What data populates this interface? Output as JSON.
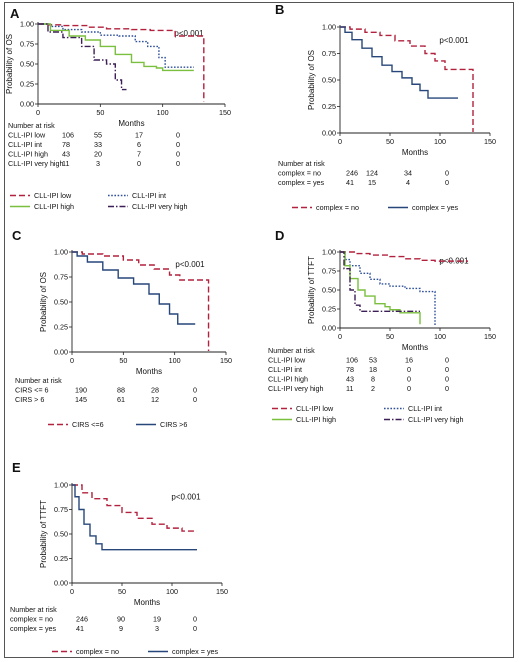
{
  "colors": {
    "red": "#b2213d",
    "blue": "#27477a",
    "green": "#7bbf3f",
    "purple": "#3d1f57",
    "navyDot": "#2e4f9a",
    "axis": "#222222"
  },
  "chart_data": [
    {
      "panel": "A",
      "type": "line",
      "step": true,
      "ylabel": "Probability of OS",
      "xlabel": "Months",
      "pvalue": "p<0.001",
      "xlim": [
        0,
        150
      ],
      "ylim": [
        0,
        1
      ],
      "xticks": [
        0,
        50,
        100,
        150
      ],
      "yticks": [
        0.0,
        0.25,
        0.5,
        0.75,
        1.0
      ],
      "series": [
        {
          "name": "CLL-IPI low",
          "color": "#b2213d",
          "dash": "long",
          "points": [
            [
              0,
              1
            ],
            [
              8,
              0.99
            ],
            [
              20,
              0.98
            ],
            [
              40,
              0.96
            ],
            [
              55,
              0.94
            ],
            [
              75,
              0.93
            ],
            [
              90,
              0.92
            ],
            [
              100,
              0.92
            ],
            [
              110,
              0.85
            ],
            [
              133,
              0.85
            ],
            [
              133,
              0.03
            ]
          ]
        },
        {
          "name": "CLL-IPI int",
          "color": "#2e4f9a",
          "dash": "dot",
          "points": [
            [
              0,
              1
            ],
            [
              10,
              0.97
            ],
            [
              20,
              0.93
            ],
            [
              35,
              0.9
            ],
            [
              50,
              0.86
            ],
            [
              65,
              0.85
            ],
            [
              78,
              0.78
            ],
            [
              88,
              0.72
            ],
            [
              97,
              0.58
            ],
            [
              102,
              0.46
            ],
            [
              125,
              0.46
            ]
          ]
        },
        {
          "name": "CLL-IPI high",
          "color": "#7bbf3f",
          "dash": "solid",
          "points": [
            [
              0,
              1
            ],
            [
              10,
              0.92
            ],
            [
              25,
              0.85
            ],
            [
              38,
              0.8
            ],
            [
              50,
              0.72
            ],
            [
              62,
              0.62
            ],
            [
              75,
              0.52
            ],
            [
              85,
              0.47
            ],
            [
              95,
              0.45
            ],
            [
              100,
              0.42
            ],
            [
              125,
              0.42
            ]
          ]
        },
        {
          "name": "CLL-IPI very high",
          "color": "#3d1f57",
          "dash": "dashdot",
          "points": [
            [
              0,
              1
            ],
            [
              8,
              0.9
            ],
            [
              20,
              0.83
            ],
            [
              35,
              0.72
            ],
            [
              45,
              0.55
            ],
            [
              55,
              0.5
            ],
            [
              62,
              0.3
            ],
            [
              67,
              0.18
            ],
            [
              71,
              0.18
            ]
          ]
        }
      ],
      "risk": {
        "title": "Number at risk",
        "rows": [
          {
            "label": "CLL-IPI  low",
            "values": [
              "106",
              "55",
              "17",
              "0"
            ]
          },
          {
            "label": "CLL-IPI  int",
            "values": [
              "78",
              "33",
              "6",
              "0"
            ]
          },
          {
            "label": "CLL-IPI  high",
            "values": [
              "43",
              "20",
              "7",
              "0"
            ]
          },
          {
            "label": "CLL-IPI very high",
            "values": [
              "11",
              "3",
              "0",
              "0"
            ]
          }
        ]
      },
      "legend_placement": "bottom"
    },
    {
      "panel": "B",
      "type": "line",
      "step": true,
      "ylabel": "Probability of OS",
      "xlabel": "Months",
      "pvalue": "p<0.001",
      "xlim": [
        0,
        150
      ],
      "ylim": [
        0,
        1
      ],
      "xticks": [
        0,
        50,
        100,
        150
      ],
      "yticks": [
        0.0,
        0.25,
        0.5,
        0.75,
        1.0
      ],
      "series": [
        {
          "name": "complex = no",
          "color": "#b2213d",
          "dash": "long",
          "points": [
            [
              0,
              1
            ],
            [
              10,
              0.98
            ],
            [
              25,
              0.95
            ],
            [
              40,
              0.92
            ],
            [
              55,
              0.87
            ],
            [
              70,
              0.82
            ],
            [
              85,
              0.75
            ],
            [
              95,
              0.68
            ],
            [
              105,
              0.6
            ],
            [
              133,
              0.6
            ],
            [
              133,
              0.01
            ]
          ]
        },
        {
          "name": "complex = yes",
          "color": "#27477a",
          "dash": "solid",
          "points": [
            [
              0,
              1
            ],
            [
              5,
              0.95
            ],
            [
              12,
              0.88
            ],
            [
              22,
              0.8
            ],
            [
              32,
              0.72
            ],
            [
              42,
              0.64
            ],
            [
              52,
              0.58
            ],
            [
              62,
              0.52
            ],
            [
              72,
              0.46
            ],
            [
              80,
              0.4
            ],
            [
              88,
              0.33
            ],
            [
              118,
              0.33
            ]
          ]
        }
      ],
      "risk": {
        "title": "Number at risk",
        "rows": [
          {
            "label": "complex = no",
            "values": [
              "246",
              "124",
              "34",
              "0"
            ]
          },
          {
            "label": "complex = yes",
            "values": [
              "41",
              "15",
              "4",
              "0"
            ]
          }
        ]
      },
      "legend_placement": "bottom"
    },
    {
      "panel": "C",
      "type": "line",
      "step": true,
      "ylabel": "Probability of OS",
      "xlabel": "Months",
      "pvalue": "p<0.001",
      "xlim": [
        0,
        150
      ],
      "ylim": [
        0,
        1
      ],
      "xticks": [
        0,
        50,
        100,
        150
      ],
      "yticks": [
        0.0,
        0.25,
        0.5,
        0.75,
        1.0
      ],
      "series": [
        {
          "name": "CIRS <=6",
          "color": "#b2213d",
          "dash": "long",
          "points": [
            [
              0,
              1
            ],
            [
              10,
              0.98
            ],
            [
              30,
              0.96
            ],
            [
              50,
              0.92
            ],
            [
              65,
              0.87
            ],
            [
              80,
              0.83
            ],
            [
              95,
              0.77
            ],
            [
              105,
              0.72
            ],
            [
              133,
              0.72
            ],
            [
              133,
              0.01
            ]
          ]
        },
        {
          "name": "CIRS >6",
          "color": "#27477a",
          "dash": "solid",
          "points": [
            [
              0,
              1
            ],
            [
              5,
              0.96
            ],
            [
              15,
              0.9
            ],
            [
              30,
              0.82
            ],
            [
              45,
              0.74
            ],
            [
              60,
              0.68
            ],
            [
              75,
              0.58
            ],
            [
              85,
              0.48
            ],
            [
              95,
              0.38
            ],
            [
              103,
              0.28
            ],
            [
              120,
              0.28
            ]
          ]
        }
      ],
      "risk": {
        "title": "Number at risk",
        "rows": [
          {
            "label": "CIRS  <=  6",
            "values": [
              "190",
              "88",
              "28",
              "0"
            ]
          },
          {
            "label": "CIRS   >  6",
            "values": [
              "145",
              "61",
              "12",
              "0"
            ]
          }
        ]
      },
      "legend_placement": "bottom"
    },
    {
      "panel": "D",
      "type": "line",
      "step": true,
      "ylabel": "Probability of TTFT",
      "xlabel": "Months",
      "pvalue": "p<0.001",
      "xlim": [
        0,
        150
      ],
      "ylim": [
        0,
        1
      ],
      "xticks": [
        0,
        50,
        100,
        150
      ],
      "yticks": [
        0.0,
        0.25,
        0.5,
        0.75,
        1.0
      ],
      "series": [
        {
          "name": "CLL-IPI low",
          "color": "#b2213d",
          "dash": "long",
          "points": [
            [
              0,
              1
            ],
            [
              15,
              0.98
            ],
            [
              30,
              0.96
            ],
            [
              50,
              0.94
            ],
            [
              65,
              0.91
            ],
            [
              80,
              0.89
            ],
            [
              95,
              0.88
            ],
            [
              128,
              0.88
            ]
          ]
        },
        {
          "name": "CLL-IPI int",
          "color": "#2e4f9a",
          "dash": "dot",
          "points": [
            [
              0,
              1
            ],
            [
              5,
              0.9
            ],
            [
              10,
              0.82
            ],
            [
              20,
              0.72
            ],
            [
              30,
              0.64
            ],
            [
              40,
              0.58
            ],
            [
              50,
              0.55
            ],
            [
              65,
              0.52
            ],
            [
              80,
              0.48
            ],
            [
              95,
              0.48
            ],
            [
              95,
              0.04
            ]
          ]
        },
        {
          "name": "CLL-IPI high",
          "color": "#7bbf3f",
          "dash": "solid",
          "points": [
            [
              0,
              1
            ],
            [
              5,
              0.82
            ],
            [
              10,
              0.65
            ],
            [
              18,
              0.5
            ],
            [
              25,
              0.42
            ],
            [
              35,
              0.32
            ],
            [
              45,
              0.28
            ],
            [
              50,
              0.24
            ],
            [
              60,
              0.2
            ],
            [
              80,
              0.2
            ],
            [
              80,
              0.05
            ]
          ]
        },
        {
          "name": "CLL-IPI very high",
          "color": "#3d1f57",
          "dash": "dashdot",
          "points": [
            [
              0,
              1
            ],
            [
              4,
              0.78
            ],
            [
              10,
              0.5
            ],
            [
              15,
              0.3
            ],
            [
              20,
              0.22
            ],
            [
              80,
              0.22
            ]
          ]
        }
      ],
      "risk": {
        "title": "Number at risk",
        "rows": [
          {
            "label": "CLL-IPI    low",
            "values": [
              "106",
              "53",
              "16",
              "0"
            ]
          },
          {
            "label": "CLL-IPI    int",
            "values": [
              "78",
              "18",
              "0",
              "0"
            ]
          },
          {
            "label": "CLL-IPI   high",
            "values": [
              "43",
              "8",
              "0",
              "0"
            ]
          },
          {
            "label": "CLL-IPI very high",
            "values": [
              "11",
              "2",
              "0",
              "0"
            ]
          }
        ]
      },
      "legend_placement": "bottom"
    },
    {
      "panel": "E",
      "type": "line",
      "step": true,
      "ylabel": "Probability of TTFT",
      "xlabel": "Months",
      "pvalue": "p<0.001",
      "xlim": [
        0,
        150
      ],
      "ylim": [
        0,
        1
      ],
      "xticks": [
        0,
        50,
        100,
        150
      ],
      "yticks": [
        0.0,
        0.25,
        0.5,
        0.75,
        1.0
      ],
      "series": [
        {
          "name": "complex = no",
          "color": "#b2213d",
          "dash": "long",
          "points": [
            [
              0,
              1
            ],
            [
              10,
              0.92
            ],
            [
              20,
              0.86
            ],
            [
              35,
              0.79
            ],
            [
              50,
              0.72
            ],
            [
              65,
              0.66
            ],
            [
              80,
              0.6
            ],
            [
              95,
              0.56
            ],
            [
              110,
              0.53
            ],
            [
              125,
              0.53
            ]
          ]
        },
        {
          "name": "complex = yes",
          "color": "#27477a",
          "dash": "solid",
          "points": [
            [
              0,
              1
            ],
            [
              3,
              0.88
            ],
            [
              7,
              0.75
            ],
            [
              12,
              0.6
            ],
            [
              18,
              0.48
            ],
            [
              24,
              0.4
            ],
            [
              30,
              0.34
            ],
            [
              125,
              0.34
            ]
          ]
        }
      ],
      "risk": {
        "title": "Number at risk",
        "rows": [
          {
            "label": "complex = no",
            "values": [
              "246",
              "90",
              "19",
              "0"
            ]
          },
          {
            "label": "complex = yes",
            "values": [
              "41",
              "9",
              "3",
              "0"
            ]
          }
        ]
      },
      "legend_placement": "bottom"
    }
  ]
}
